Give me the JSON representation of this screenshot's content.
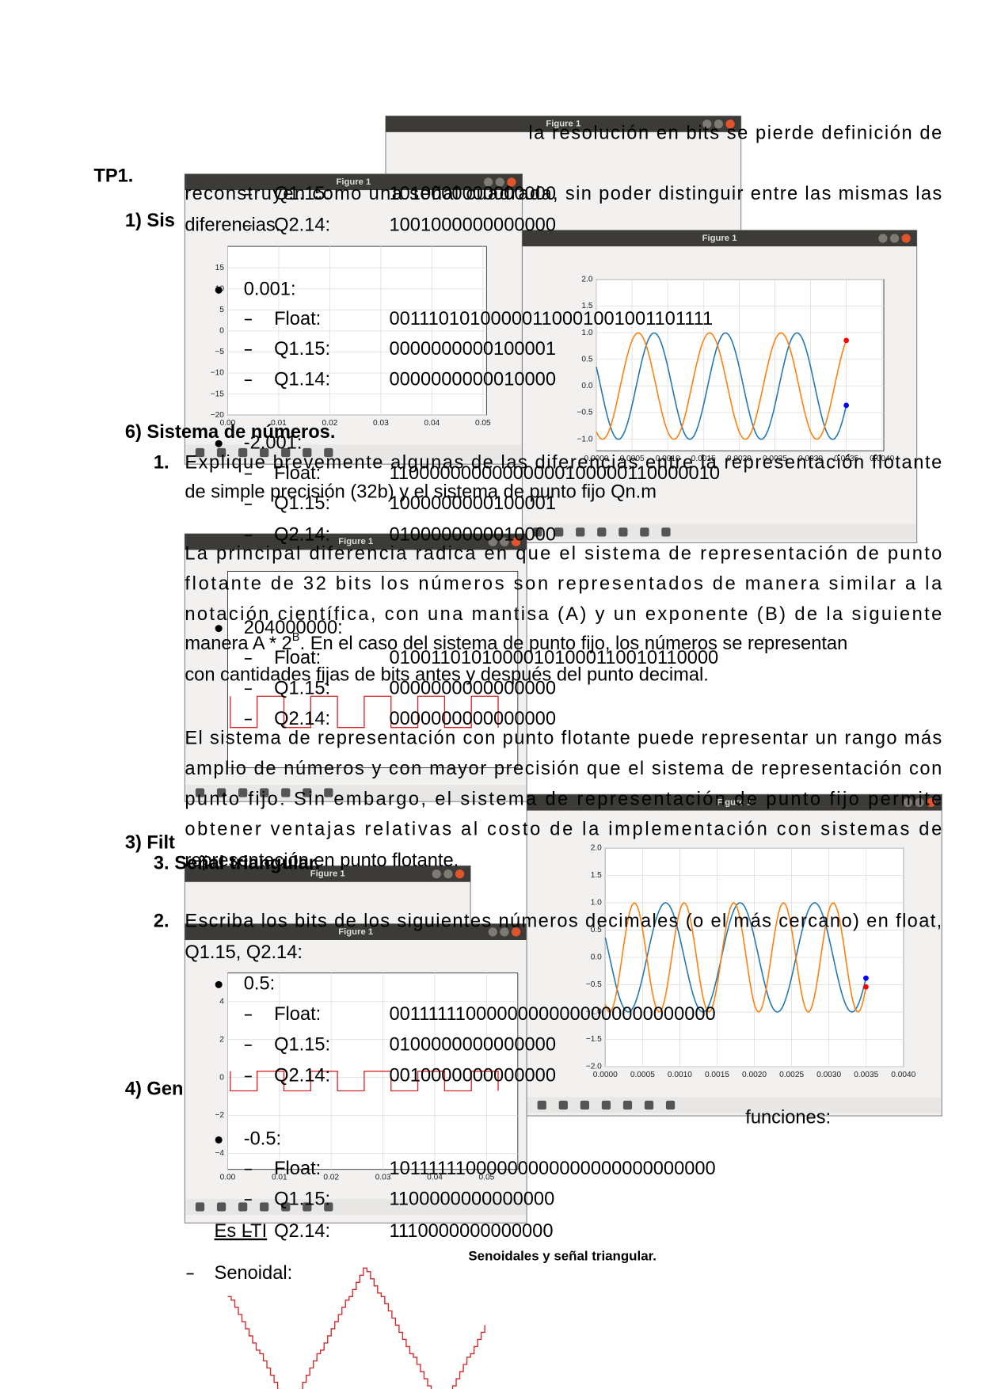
{
  "document": {
    "top_line": "la resolución en bits se pierde definición de",
    "title": "TP1.",
    "top_paragraph": [
      "reconstruyen como una señal cuadrada, sin poder distinguir entre las mismas las",
      "diferencias."
    ],
    "fragments": [
      "1) Sis",
      "3) Filt",
      "4) Gen",
      "3. Señal triangular.",
      "funciones:"
    ],
    "section_heading": "6) Sistema de números.",
    "question_1": {
      "number": "1.",
      "lines": [
        "Explique brevemente algunas de las diferencias entre la representación flotante",
        "de simple precisión (32b) y el sistema de punto fijo Qn.m"
      ]
    },
    "answer_1": {
      "paragraph_1": [
        "La principal diferencia radica en que el sistema de representación de punto",
        "flotante de 32 bits los números son representados de manera similar a la",
        "notación científica, con una mantisa (A) y un exponente (B) de la siguiente",
        {
          "before": "manera A * 2",
          "sup": "B",
          "after": ". En el caso del sistema de punto fijo, los números se representan"
        },
        "con cantidades fijas de bits antes y después del punto decimal."
      ],
      "paragraph_2": [
        "El sistema de representación con punto flotante puede representar un rango más",
        "amplio de números y con mayor precisión que el sistema de representación con",
        "punto fijo. Sin embargo, el sistema de representación de punto fijo permite",
        "obtener ventajas relativas al costo de la implementación con sistemas de",
        "representación en punto flotante."
      ]
    },
    "question_2": {
      "number": "2.",
      "lines": [
        "Escriba los bits de los siguientes números decimales (o el más cercano) en float,",
        "Q1.15, Q2.14:"
      ]
    },
    "conversions": [
      {
        "rows": [
          {
            "label": "Q1.15:",
            "bits": "1010000000000000"
          },
          {
            "label": "Q2.14:",
            "bits": "1001000000000000"
          }
        ]
      },
      {
        "number": "0.001:",
        "rows": [
          {
            "label": "Float:",
            "bits": "00111010100000110001001001101111"
          },
          {
            "label": "Q1.15:",
            "bits": "0000000000100001"
          },
          {
            "label": "Q1.14:",
            "bits": "0000000000010000"
          }
        ]
      },
      {
        "number": "-2.001:",
        "rows": [
          {
            "label": "Float:",
            "bits": "11000000000000000100000110000010"
          },
          {
            "label": "Q1.15:",
            "bits": "1000000000100001"
          },
          {
            "label": "Q2.14:",
            "bits": "0100000000010000"
          }
        ]
      },
      {
        "number": "204000000:",
        "rows": [
          {
            "label": "Float:",
            "bits": "01001101010000101000110010110000"
          },
          {
            "label": "Q1.15:",
            "bits": "0000000000000000"
          },
          {
            "label": "Q2.14:",
            "bits": "0000000000000000"
          }
        ]
      },
      {
        "number": "0.5:",
        "rows": [
          {
            "label": "Float:",
            "bits": "00111111000000000000000000000000"
          },
          {
            "label": "Q1.15:",
            "bits": "0100000000000000"
          },
          {
            "label": "Q2.14:",
            "bits": "0010000000000000"
          }
        ]
      },
      {
        "number": "-0.5:",
        "rows": [
          {
            "label": "Float:",
            "bits": "10111111000000000000000000000000"
          },
          {
            "label": "Q1.15:",
            "bits": "1100000000000000"
          },
          {
            "label": "Q2.14:",
            "bits": "1110000000000000"
          }
        ]
      }
    ],
    "es_lti": "Es LTI",
    "senoidal": "Senoidal:",
    "caption": "Senoidales y señal triangular.",
    "figures": [
      {
        "title": "Figure 1"
      },
      {
        "title": "Figure 1",
        "yticks": [
          "15",
          "10",
          "5",
          "0",
          "−5",
          "−10",
          "−15",
          "−20"
        ],
        "xticks": [
          "0.00",
          "0.01",
          "0.02",
          "0.03",
          "0.04",
          "0.05"
        ]
      },
      {
        "title": "Figure 1",
        "yticks": [
          "2.0",
          "1.5",
          "1.0",
          "0.5",
          "0.0",
          "−0.5",
          "−1.0"
        ],
        "xticks": [
          "0.0000",
          "0.0005",
          "0.0010",
          "0.0015",
          "0.0020",
          "0.0025",
          "0.0030",
          "0.0035",
          "0.0040"
        ]
      },
      {
        "title": "Figure 1"
      },
      {
        "title": "Figure 1"
      },
      {
        "title": "Figure 1",
        "yticks": [
          "4",
          "2",
          "0",
          "−2",
          "−4"
        ],
        "xticks": [
          "0.00",
          "0.01",
          "0.02",
          "0.03",
          "0.04",
          "0.05"
        ]
      },
      {
        "title": "Figure 1",
        "yticks": [
          "2.0",
          "1.5",
          "1.0",
          "0.5",
          "0.0",
          "−0.5",
          "−1.0",
          "−1.5",
          "−2.0"
        ],
        "xticks": [
          "0.0000",
          "0.0005",
          "0.0010",
          "0.0015",
          "0.0020",
          "0.0025",
          "0.0030",
          "0.0035",
          "0.0040"
        ]
      }
    ]
  }
}
